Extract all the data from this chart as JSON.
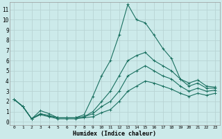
{
  "xlabel": "Humidex (Indice chaleur)",
  "bg_color": "#cceaea",
  "grid_color": "#b8d4d4",
  "line_color": "#1a7060",
  "xlim": [
    -0.5,
    23.5
  ],
  "ylim": [
    -0.3,
    11.7
  ],
  "xtick_labels": [
    "0",
    "1",
    "2",
    "3",
    "4",
    "5",
    "6",
    "7",
    "8",
    "9",
    "10",
    "11",
    "12",
    "13",
    "14",
    "15",
    "16",
    "17",
    "18",
    "19",
    "20",
    "21",
    "22",
    "23"
  ],
  "ytick_labels": [
    "0",
    "1",
    "2",
    "3",
    "4",
    "5",
    "6",
    "7",
    "8",
    "9",
    "10",
    "11"
  ],
  "series": [
    {
      "x": [
        0,
        1,
        2,
        3,
        4,
        5,
        6,
        7,
        8,
        9,
        10,
        11,
        12,
        13,
        14,
        15,
        16,
        17,
        18,
        19,
        20,
        21,
        22,
        23
      ],
      "y": [
        2.2,
        1.5,
        0.3,
        1.1,
        0.8,
        0.4,
        0.4,
        0.4,
        0.7,
        2.5,
        4.5,
        6.0,
        8.5,
        11.5,
        10.0,
        9.7,
        8.5,
        7.2,
        6.2,
        4.2,
        3.8,
        4.1,
        3.5,
        3.4
      ]
    },
    {
      "x": [
        0,
        1,
        2,
        3,
        4,
        5,
        6,
        7,
        8,
        9,
        10,
        11,
        12,
        13,
        14,
        15,
        16,
        17,
        18,
        19,
        20,
        21,
        22,
        23
      ],
      "y": [
        2.2,
        1.5,
        0.3,
        0.8,
        0.6,
        0.4,
        0.4,
        0.4,
        0.5,
        1.0,
        2.0,
        3.0,
        4.5,
        6.0,
        6.5,
        6.8,
        6.0,
        5.5,
        5.0,
        4.2,
        3.5,
        3.8,
        3.3,
        3.3
      ]
    },
    {
      "x": [
        0,
        1,
        2,
        3,
        4,
        5,
        6,
        7,
        8,
        9,
        10,
        11,
        12,
        13,
        14,
        15,
        16,
        17,
        18,
        19,
        20,
        21,
        22,
        23
      ],
      "y": [
        2.2,
        1.5,
        0.3,
        0.8,
        0.6,
        0.4,
        0.4,
        0.4,
        0.5,
        0.8,
        1.5,
        2.0,
        3.0,
        4.5,
        5.0,
        5.5,
        5.0,
        4.5,
        4.2,
        3.5,
        3.0,
        3.3,
        3.0,
        3.1
      ]
    },
    {
      "x": [
        0,
        1,
        2,
        3,
        4,
        5,
        6,
        7,
        8,
        9,
        10,
        11,
        12,
        13,
        14,
        15,
        16,
        17,
        18,
        19,
        20,
        21,
        22,
        23
      ],
      "y": [
        2.2,
        1.5,
        0.3,
        0.7,
        0.5,
        0.3,
        0.3,
        0.3,
        0.4,
        0.5,
        0.9,
        1.2,
        2.0,
        3.0,
        3.5,
        4.0,
        3.8,
        3.5,
        3.2,
        2.8,
        2.5,
        2.8,
        2.6,
        2.8
      ]
    }
  ]
}
